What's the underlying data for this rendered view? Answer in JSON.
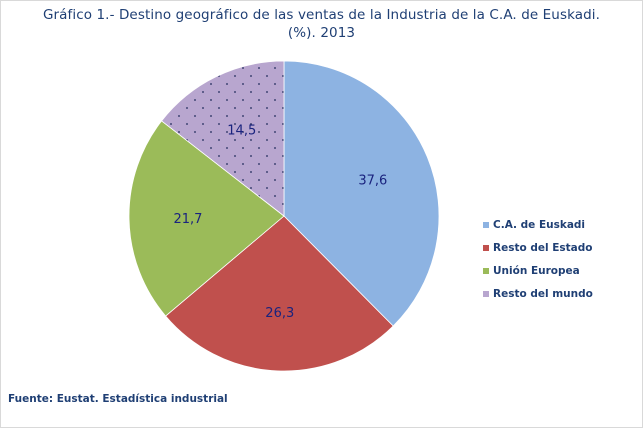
{
  "chart_data": {
    "type": "pie",
    "title_lines": [
      "Gráfico 1.- Destino geográfico de las ventas de la Industria de la C.A. de Euskadi.",
      "(%). 2013"
    ],
    "labels": [
      "C.A. de Euskadi",
      "Resto del Estado",
      "Unión Europea",
      "Resto del mundo"
    ],
    "values": [
      37.6,
      26.3,
      21.7,
      14.5
    ],
    "value_labels": [
      "37,6",
      "26,3",
      "21,7",
      "14,5"
    ],
    "colors": [
      "#8db3e2",
      "#c0504d",
      "#9bbb59",
      "#b8a6cf"
    ],
    "patterns": [
      "solid",
      "solid",
      "solid",
      "dotted"
    ],
    "start_angle": "12 o'clock",
    "direction": "clockwise",
    "legend_position": "right"
  },
  "source_text": "Fuente: Eustat. Estadística industrial"
}
